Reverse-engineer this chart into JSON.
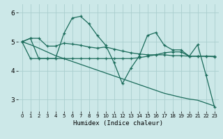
{
  "xlabel": "Humidex (Indice chaleur)",
  "bg_color": "#cce8e8",
  "grid_color": "#aacece",
  "line_color": "#1a6b5a",
  "xlim": [
    -0.5,
    23.5
  ],
  "ylim": [
    2.6,
    6.3
  ],
  "yticks": [
    3,
    4,
    5,
    6
  ],
  "xticks": [
    0,
    1,
    2,
    3,
    4,
    5,
    6,
    7,
    8,
    9,
    10,
    11,
    12,
    13,
    14,
    15,
    16,
    17,
    18,
    19,
    20,
    21,
    22,
    23
  ],
  "line1_x": [
    0,
    1,
    2,
    3,
    4,
    5,
    6,
    7,
    8,
    9,
    10,
    11,
    12,
    13,
    14,
    15,
    16,
    17,
    18,
    19,
    20,
    21,
    22,
    23
  ],
  "line1_y": [
    5.0,
    5.12,
    5.12,
    4.85,
    4.85,
    4.95,
    4.92,
    4.88,
    4.82,
    4.78,
    4.82,
    4.75,
    4.68,
    4.62,
    4.58,
    4.55,
    4.55,
    4.55,
    4.52,
    4.52,
    4.5,
    4.5,
    4.5,
    4.48
  ],
  "line2_x": [
    0,
    1,
    2,
    3,
    4,
    5,
    6,
    7,
    8,
    9,
    10,
    11,
    12,
    13,
    14,
    15,
    16,
    17,
    18,
    19,
    20,
    21,
    22,
    23
  ],
  "line2_y": [
    5.0,
    5.12,
    4.42,
    4.42,
    4.42,
    5.28,
    5.82,
    5.88,
    5.62,
    5.22,
    4.88,
    4.28,
    3.55,
    4.08,
    4.5,
    5.22,
    5.32,
    4.88,
    4.72,
    4.72,
    4.5,
    4.9,
    3.85,
    2.75
  ],
  "line3_x": [
    0,
    1,
    2,
    3,
    4,
    5,
    6,
    7,
    8,
    9,
    10,
    11,
    12,
    13,
    14,
    15,
    16,
    17,
    18,
    19,
    20,
    21,
    22,
    23
  ],
  "line3_y": [
    5.0,
    4.9,
    4.78,
    4.65,
    4.52,
    4.42,
    4.32,
    4.22,
    4.12,
    4.02,
    3.92,
    3.82,
    3.72,
    3.62,
    3.52,
    3.42,
    3.32,
    3.22,
    3.15,
    3.08,
    3.02,
    2.98,
    2.88,
    2.78
  ],
  "line4_x": [
    0,
    1,
    2,
    3,
    4,
    5,
    6,
    7,
    8,
    9,
    10,
    11,
    12,
    13,
    14,
    15,
    16,
    17,
    18,
    19,
    20,
    21,
    22,
    23
  ],
  "line4_y": [
    5.0,
    4.42,
    4.42,
    4.42,
    4.42,
    4.42,
    4.42,
    4.42,
    4.42,
    4.42,
    4.42,
    4.42,
    4.42,
    4.42,
    4.45,
    4.5,
    4.55,
    4.62,
    4.65,
    4.65,
    4.5,
    4.5,
    4.5,
    4.5
  ]
}
